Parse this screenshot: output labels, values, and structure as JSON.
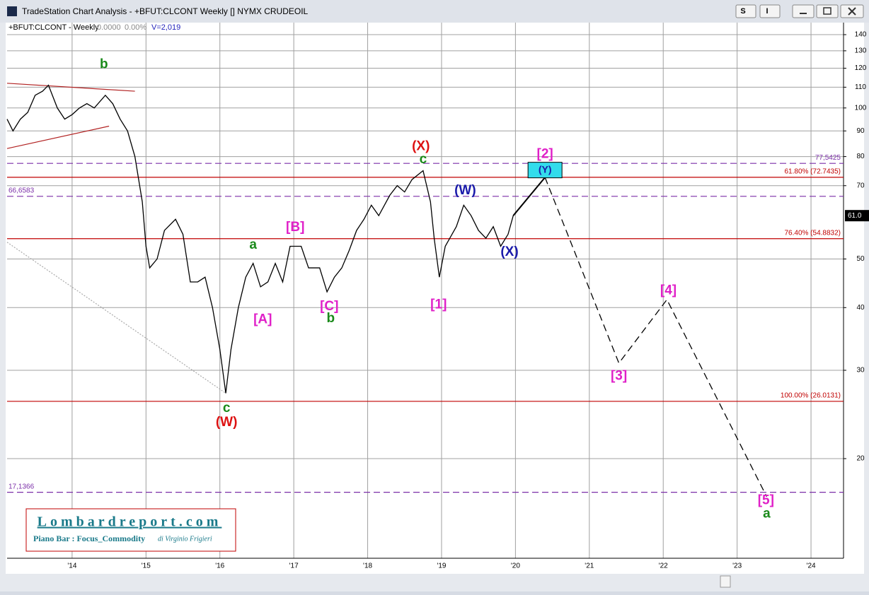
{
  "window": {
    "title": "TradeStation Chart Analysis - +BFUT:CLCONT Weekly [] NYMX CRUDEOIL",
    "buttons": [
      "S",
      "I"
    ]
  },
  "header": {
    "symbol": "+BFUT:CLCONT - Weekly",
    "change": "0.0000",
    "change_pct": "0.00%",
    "volume": "V=2,019"
  },
  "watermark": {
    "site": "Lombardreport.com",
    "line": "Piano Bar : Focus_Commodity",
    "author": "di Virginio Frigieri"
  },
  "chart_data": {
    "type": "line",
    "log_y": true,
    "grid": true,
    "xlim": [
      2013.12,
      2024.44
    ],
    "xticks": [
      {
        "value": 2014,
        "label": "'14"
      },
      {
        "value": 2015,
        "label": "'15"
      },
      {
        "value": 2016,
        "label": "'16"
      },
      {
        "value": 2017,
        "label": "'17"
      },
      {
        "value": 2018,
        "label": "'18"
      },
      {
        "value": 2019,
        "label": "'19"
      },
      {
        "value": 2020,
        "label": "'20"
      },
      {
        "value": 2021,
        "label": "'21"
      },
      {
        "value": 2022,
        "label": "'22"
      },
      {
        "value": 2023,
        "label": "'23"
      },
      {
        "value": 2024,
        "label": "'24"
      }
    ],
    "ylim": [
      12.66,
      145.1
    ],
    "yticks": [
      20,
      30,
      40,
      50,
      70,
      80,
      90,
      100,
      110,
      120,
      130,
      140
    ],
    "last_price": {
      "value": 61,
      "label": "61.0"
    },
    "series": [
      {
        "color": "#000000",
        "dash": false,
        "x": [
          2013.12,
          2013.2,
          2013.3,
          2013.4,
          2013.5,
          2013.6,
          2013.68,
          2013.8,
          2013.9,
          2014.0,
          2014.1,
          2014.2,
          2014.3,
          2014.45,
          2014.55,
          2014.65,
          2014.75,
          2014.85,
          2014.95,
          2015.0,
          2015.05,
          2015.15,
          2015.25,
          2015.4,
          2015.5,
          2015.6,
          2015.7,
          2015.8,
          2015.9,
          2016.0,
          2016.08,
          2016.15,
          2016.25,
          2016.35,
          2016.45,
          2016.55,
          2016.65,
          2016.75,
          2016.85,
          2016.95,
          2017.1,
          2017.2,
          2017.35,
          2017.45,
          2017.55,
          2017.65,
          2017.75,
          2017.85,
          2017.95,
          2018.05,
          2018.15,
          2018.3,
          2018.4,
          2018.5,
          2018.6,
          2018.75,
          2018.85,
          2018.9,
          2018.97,
          2019.05,
          2019.2,
          2019.3,
          2019.4,
          2019.5,
          2019.6,
          2019.7,
          2019.8,
          2019.9,
          2019.97
        ],
        "values": [
          95,
          90,
          95,
          98,
          106,
          108,
          111,
          100,
          95,
          97,
          100,
          102,
          100,
          106,
          102,
          95,
          90,
          80,
          65,
          53,
          48,
          50,
          57,
          60,
          56,
          45,
          45,
          46,
          40,
          33,
          27,
          33,
          40,
          46,
          49,
          44,
          45,
          49,
          45,
          53,
          53,
          48,
          48,
          43,
          46,
          48,
          52,
          57,
          60,
          64,
          61,
          67,
          70,
          68,
          72,
          75,
          65,
          55,
          46,
          53,
          58,
          64,
          61,
          57,
          55,
          58,
          53,
          56,
          61
        ]
      },
      {
        "color": "#000000",
        "dash": false,
        "x": [
          2019.97,
          2020.4
        ],
        "values": [
          61,
          72.7
        ]
      },
      {
        "color": "#000000",
        "dash": true,
        "x": [
          2020.4,
          2021.4,
          2022.05,
          2023.4
        ],
        "values": [
          72.7,
          31,
          41.5,
          16.8
        ]
      }
    ],
    "trendlines": [
      {
        "color": "#b22222",
        "x": [
          2013.12,
          2014.85
        ],
        "values": [
          112,
          108
        ]
      },
      {
        "color": "#b22222",
        "x": [
          2013.12,
          2014.5
        ],
        "values": [
          83,
          92
        ]
      },
      {
        "color": "#aaaaaa",
        "x": [
          2013.12,
          2016.08
        ],
        "values": [
          54,
          27
        ]
      }
    ],
    "levels": [
      {
        "value": 77.5425,
        "label": "77,5425",
        "color": "#7b2fa8",
        "dash": true,
        "side": "right"
      },
      {
        "value": 72.7435,
        "label": "61.80% (72.7435)",
        "color": "#c00000",
        "dash": false,
        "side": "right"
      },
      {
        "value": 66.6583,
        "label": "66,6583",
        "color": "#7b2fa8",
        "dash": true,
        "side": "left"
      },
      {
        "value": 54.8832,
        "label": "76.40% (54.8832)",
        "color": "#c00000",
        "dash": false,
        "side": "right"
      },
      {
        "value": 26.0131,
        "label": "100.00% (26.0131)",
        "color": "#c00000",
        "dash": false,
        "side": "right"
      },
      {
        "value": 17.1366,
        "label": "17,1366",
        "color": "#7b2fa8",
        "dash": true,
        "side": "left"
      }
    ],
    "annotations": [
      {
        "text": "b",
        "x": 2014.43,
        "y": 122,
        "color": "#1a8a1a"
      },
      {
        "text": "c",
        "x": 2016.09,
        "y": 25.2,
        "color": "#1a8a1a"
      },
      {
        "text": "(W)",
        "x": 2016.09,
        "y": 23.6,
        "color": "#dd1111"
      },
      {
        "text": "a",
        "x": 2016.45,
        "y": 53.3,
        "color": "#1a8a1a"
      },
      {
        "text": "[A]",
        "x": 2016.58,
        "y": 37.8,
        "color": "#e020c8"
      },
      {
        "text": "[B]",
        "x": 2017.02,
        "y": 57.8,
        "color": "#e020c8"
      },
      {
        "text": "[C]",
        "x": 2017.48,
        "y": 40.2,
        "color": "#e020c8"
      },
      {
        "text": "b",
        "x": 2017.5,
        "y": 38,
        "color": "#1a8a1a"
      },
      {
        "text": "(X)",
        "x": 2018.72,
        "y": 83.7,
        "color": "#dd1111"
      },
      {
        "text": "c",
        "x": 2018.75,
        "y": 78.9,
        "color": "#1a8a1a"
      },
      {
        "text": "[1]",
        "x": 2018.96,
        "y": 40.5,
        "color": "#e020c8"
      },
      {
        "text": "(W)",
        "x": 2019.32,
        "y": 68.4,
        "color": "#1a1aaa"
      },
      {
        "text": "(X)",
        "x": 2019.92,
        "y": 51.6,
        "color": "#1a1aaa"
      },
      {
        "text": "[2]",
        "x": 2020.4,
        "y": 80.8,
        "color": "#e020c8"
      },
      {
        "text": "(Y)",
        "x": 2020.4,
        "y": 75.2,
        "color": "#1a1aaa",
        "box": "#33dcec"
      },
      {
        "text": "[3]",
        "x": 2021.4,
        "y": 29.2,
        "color": "#e020c8"
      },
      {
        "text": "[4]",
        "x": 2022.07,
        "y": 43.2,
        "color": "#e020c8"
      },
      {
        "text": "[5]",
        "x": 2023.39,
        "y": 16.5,
        "color": "#e020c8"
      },
      {
        "text": "a",
        "x": 2023.4,
        "y": 15.5,
        "color": "#1a8a1a"
      }
    ]
  }
}
